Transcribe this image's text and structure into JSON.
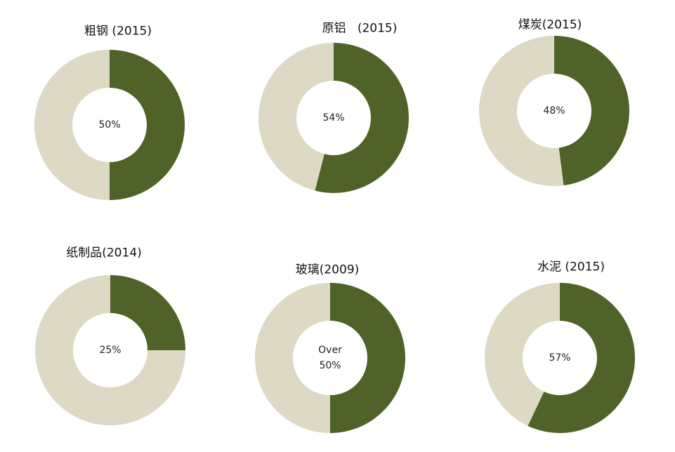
{
  "chart_data": [
    {
      "type": "pie",
      "title": "粗钢 (2015)",
      "values": [
        50,
        50
      ],
      "value_labels": [
        "50%",
        null
      ],
      "colors": [
        "#4f6228",
        "#ddd9c4"
      ]
    },
    {
      "type": "pie",
      "title": "原铝   (2015)",
      "values": [
        54,
        46
      ],
      "value_labels": [
        "54%",
        null
      ],
      "colors": [
        "#4f6228",
        "#ddd9c4"
      ]
    },
    {
      "type": "pie",
      "title": "煤炭(2015)",
      "values": [
        48,
        52
      ],
      "value_labels": [
        "48%",
        null
      ],
      "colors": [
        "#4f6228",
        "#ddd9c4"
      ]
    },
    {
      "type": "pie",
      "title": "纸制品(2014)",
      "values": [
        25,
        75
      ],
      "value_labels": [
        "25%",
        null
      ],
      "colors": [
        "#4f6228",
        "#ddd9c4"
      ]
    },
    {
      "type": "pie",
      "title": "玻璃(2009)",
      "values": [
        50,
        50
      ],
      "value_labels": [
        "Over 50%",
        null
      ],
      "colors": [
        "#4f6228",
        "#ddd9c4"
      ]
    },
    {
      "type": "pie",
      "title": "水泥 (2015)",
      "values": [
        57,
        43
      ],
      "value_labels": [
        "57%",
        null
      ],
      "colors": [
        "#4f6228",
        "#ddd9c4"
      ]
    }
  ]
}
